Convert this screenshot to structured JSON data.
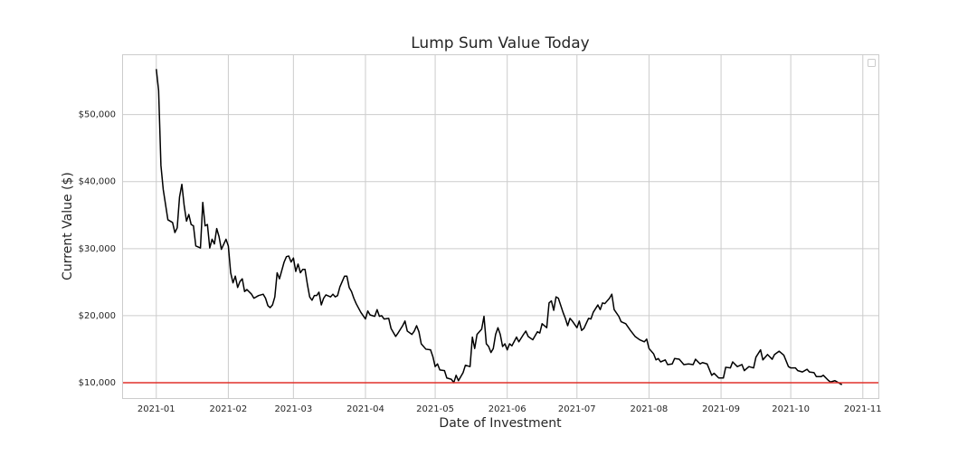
{
  "chart_data": {
    "type": "line",
    "title": "Lump Sum Value Today",
    "xlabel": "Date of Investment",
    "ylabel": "Current Value ($)",
    "color": "#000000",
    "grid": true,
    "hline": {
      "value": 10000,
      "color": "#e0302a"
    },
    "xlim": [
      -14.7,
      310.7
    ],
    "xticks": [
      {
        "value": 0,
        "label": "2021-01"
      },
      {
        "value": 31,
        "label": "2021-02"
      },
      {
        "value": 59,
        "label": "2021-03"
      },
      {
        "value": 90,
        "label": "2021-04"
      },
      {
        "value": 120,
        "label": "2021-05"
      },
      {
        "value": 151,
        "label": "2021-06"
      },
      {
        "value": 181,
        "label": "2021-07"
      },
      {
        "value": 212,
        "label": "2021-08"
      },
      {
        "value": 243,
        "label": "2021-09"
      },
      {
        "value": 273,
        "label": "2021-10"
      },
      {
        "value": 304,
        "label": "2021-11"
      }
    ],
    "ylim": [
      7700,
      59000
    ],
    "yticks": [
      {
        "value": 10000,
        "label": "$10,000"
      },
      {
        "value": 20000,
        "label": "$20,000"
      },
      {
        "value": 30000,
        "label": "$30,000"
      },
      {
        "value": 40000,
        "label": "$40,000"
      },
      {
        "value": 50000,
        "label": "$50,000"
      }
    ],
    "x": [
      0,
      1,
      2,
      3,
      5,
      7,
      8,
      9,
      10,
      11,
      12,
      13,
      14,
      15,
      16,
      17,
      19,
      20,
      21,
      22,
      23,
      24,
      25,
      26,
      27,
      28,
      30,
      31,
      32,
      33,
      34,
      35,
      36,
      37,
      38,
      39,
      41,
      42,
      44,
      46,
      47,
      48,
      49,
      50,
      51,
      52,
      53,
      55,
      56,
      57,
      58,
      59,
      60,
      61,
      62,
      63,
      64,
      65,
      66,
      67,
      68,
      69,
      70,
      71,
      72,
      73,
      75,
      76,
      77,
      78,
      79,
      81,
      82,
      83,
      84,
      85,
      86,
      88,
      90,
      91,
      92,
      94,
      95,
      96,
      97,
      98,
      100,
      101,
      103,
      104,
      106,
      107,
      108,
      110,
      111,
      112,
      113,
      114,
      116,
      118,
      119,
      120,
      121,
      122,
      124,
      125,
      127,
      128,
      129,
      130,
      132,
      133,
      135,
      136,
      137,
      138,
      140,
      141,
      142,
      143,
      144,
      145,
      146,
      147,
      148,
      149,
      150,
      151,
      152,
      153,
      155,
      156,
      158,
      159,
      160,
      162,
      164,
      165,
      166,
      168,
      169,
      170,
      171,
      172,
      173,
      175,
      176,
      177,
      178,
      179,
      181,
      182,
      183,
      184,
      186,
      187,
      188,
      190,
      191,
      192,
      193,
      195,
      196,
      197,
      199,
      200,
      202,
      204,
      206,
      208,
      210,
      211,
      212,
      214,
      215,
      216,
      217,
      219,
      220,
      222,
      223,
      225,
      227,
      229,
      231,
      232,
      234,
      235,
      237,
      239,
      240,
      242,
      244,
      245,
      247,
      248,
      250,
      252,
      253,
      255,
      257,
      258,
      260,
      261,
      263,
      265,
      266,
      268,
      270,
      272,
      273,
      275,
      276,
      278,
      280,
      281,
      283,
      284,
      286,
      287,
      289,
      290,
      292,
      294,
      295
    ],
    "values": [
      56800,
      53600,
      42400,
      38800,
      34300,
      33900,
      32400,
      33100,
      37700,
      39600,
      36400,
      34100,
      35100,
      33600,
      33400,
      30400,
      30100,
      36900,
      33400,
      33600,
      30100,
      31400,
      30700,
      33000,
      31800,
      29900,
      31400,
      30400,
      26400,
      24900,
      25900,
      24200,
      25100,
      25500,
      23600,
      23900,
      23200,
      22600,
      23000,
      23200,
      22600,
      21500,
      21200,
      21600,
      22800,
      26400,
      25500,
      28000,
      28800,
      28900,
      28000,
      28600,
      26600,
      27700,
      26400,
      26900,
      26900,
      24700,
      22800,
      22300,
      23000,
      23000,
      23500,
      21600,
      22600,
      23100,
      22800,
      23200,
      22800,
      23000,
      24300,
      25900,
      25900,
      24200,
      23600,
      22600,
      21800,
      20500,
      19500,
      20700,
      20100,
      19900,
      20900,
      19900,
      20000,
      19500,
      19600,
      18100,
      16900,
      17400,
      18500,
      19200,
      17700,
      17200,
      17700,
      18500,
      17600,
      15800,
      15000,
      14900,
      13900,
      12400,
      12800,
      11900,
      11800,
      10700,
      10500,
      10000,
      11100,
      10300,
      11500,
      12600,
      12400,
      16800,
      15100,
      17200,
      18000,
      19900,
      15800,
      15400,
      14500,
      15100,
      17200,
      18200,
      17200,
      15400,
      15800,
      14900,
      15800,
      15500,
      16800,
      16100,
      17200,
      17700,
      16900,
      16400,
      17600,
      17400,
      18800,
      18200,
      21900,
      22200,
      20800,
      22800,
      22600,
      20500,
      19600,
      18500,
      19600,
      19200,
      18200,
      19200,
      17800,
      18100,
      19600,
      19500,
      20500,
      21600,
      20900,
      21900,
      21800,
      22600,
      23200,
      20900,
      19900,
      19100,
      18800,
      17800,
      16900,
      16400,
      16100,
      16500,
      15100,
      14300,
      13400,
      13600,
      13100,
      13400,
      12700,
      12800,
      13600,
      13500,
      12700,
      12800,
      12700,
      13500,
      12800,
      13000,
      12800,
      11100,
      11400,
      10700,
      10700,
      12300,
      12200,
      13100,
      12400,
      12700,
      11800,
      12400,
      12200,
      13800,
      14900,
      13400,
      14200,
      13500,
      14200,
      14700,
      14100,
      12400,
      12200,
      12200,
      11800,
      11600,
      12000,
      11600,
      11500,
      10900,
      10900,
      11100,
      10400,
      10100,
      10300,
      9900,
      9700
    ]
  }
}
